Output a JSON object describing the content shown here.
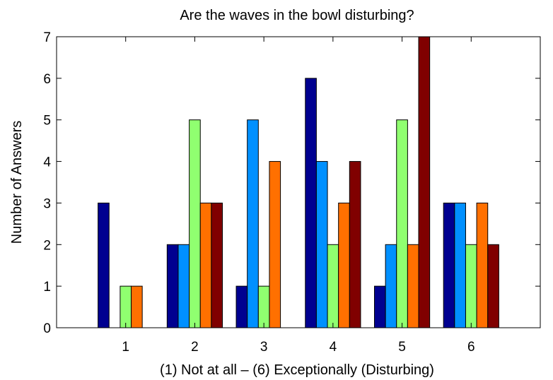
{
  "chart_data": {
    "type": "bar",
    "title": "Are the waves in the bowl disturbing?",
    "xlabel": "(1) Not at all – (6) Exceptionally (Disturbing)",
    "ylabel": "Number of Answers",
    "categories": [
      "1",
      "2",
      "3",
      "4",
      "5",
      "6"
    ],
    "x_range": [
      0,
      7
    ],
    "ylim": [
      0,
      7
    ],
    "y_ticks": [
      "0",
      "1",
      "2",
      "3",
      "4",
      "5",
      "6",
      "7"
    ],
    "grid": false,
    "legend": "none",
    "series": [
      {
        "values": [
          3,
          2,
          1,
          6,
          1,
          3
        ],
        "color": "#000090"
      },
      {
        "values": [
          0,
          2,
          5,
          4,
          2,
          3
        ],
        "color": "#0090ff"
      },
      {
        "values": [
          1,
          5,
          1,
          2,
          5,
          2
        ],
        "color": "#90ff70"
      },
      {
        "values": [
          1,
          3,
          4,
          3,
          2,
          3
        ],
        "color": "#ff7000"
      },
      {
        "values": [
          0,
          3,
          0,
          4,
          7,
          2
        ],
        "color": "#800000"
      }
    ]
  }
}
